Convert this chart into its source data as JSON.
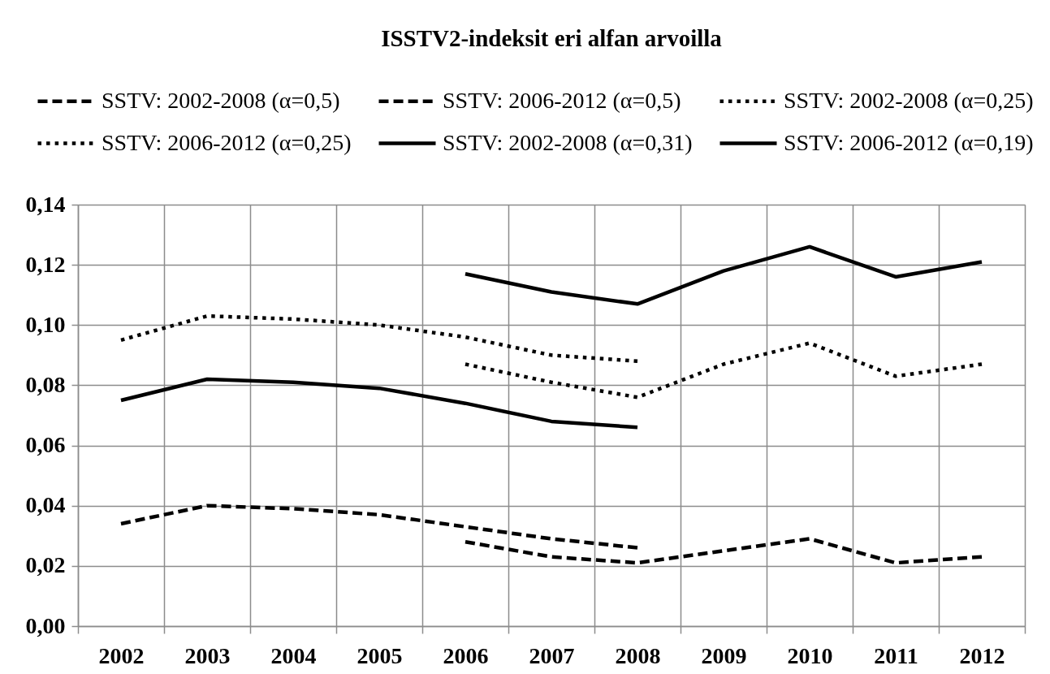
{
  "chart_data": {
    "type": "line",
    "title": "ISSTV2-indeksit eri alfan arvoilla",
    "categories": [
      "2002",
      "2003",
      "2004",
      "2005",
      "2006",
      "2007",
      "2008",
      "2009",
      "2010",
      "2011",
      "2012"
    ],
    "series": [
      {
        "name": "SSTV: 2002-2008 (α=0,5)",
        "color": "#000000",
        "line_style": "dashed",
        "values": [
          0.034,
          0.04,
          0.039,
          0.037,
          0.033,
          0.029,
          0.026,
          null,
          null,
          null,
          null
        ]
      },
      {
        "name": "SSTV: 2006-2012 (α=0,5)",
        "color": "#000000",
        "line_style": "dashed",
        "values": [
          null,
          null,
          null,
          null,
          0.028,
          0.023,
          0.021,
          0.025,
          0.029,
          0.021,
          0.023
        ]
      },
      {
        "name": "SSTV: 2002-2008 (α=0,25)",
        "color": "#000000",
        "line_style": "dotted",
        "values": [
          0.095,
          0.103,
          0.102,
          0.1,
          0.096,
          0.09,
          0.088,
          null,
          null,
          null,
          null
        ]
      },
      {
        "name": "SSTV: 2006-2012 (α=0,25)",
        "color": "#000000",
        "line_style": "dotted",
        "values": [
          null,
          null,
          null,
          null,
          0.087,
          0.081,
          0.076,
          0.087,
          0.094,
          0.083,
          0.087
        ]
      },
      {
        "name": "SSTV: 2002-2008 (α=0,31)",
        "color": "#000000",
        "line_style": "solid",
        "values": [
          0.075,
          0.082,
          0.081,
          0.079,
          0.074,
          0.068,
          0.066,
          null,
          null,
          null,
          null
        ]
      },
      {
        "name": "SSTV: 2006-2012 (α=0,19)",
        "color": "#000000",
        "line_style": "solid",
        "values": [
          null,
          null,
          null,
          null,
          0.117,
          0.111,
          0.107,
          0.118,
          0.126,
          0.116,
          0.121
        ]
      }
    ],
    "ylim": [
      0,
      0.14
    ],
    "yticks": [
      {
        "value": 0,
        "label": "0,00"
      },
      {
        "value": 0.02,
        "label": "0,02"
      },
      {
        "value": 0.04,
        "label": "0,04"
      },
      {
        "value": 0.06,
        "label": "0,06"
      },
      {
        "value": 0.08,
        "label": "0,08"
      },
      {
        "value": 0.1,
        "label": "0,10"
      },
      {
        "value": 0.12,
        "label": "0,12"
      },
      {
        "value": 0.14,
        "label": "0,14"
      }
    ],
    "grid": true,
    "legend": "top"
  }
}
